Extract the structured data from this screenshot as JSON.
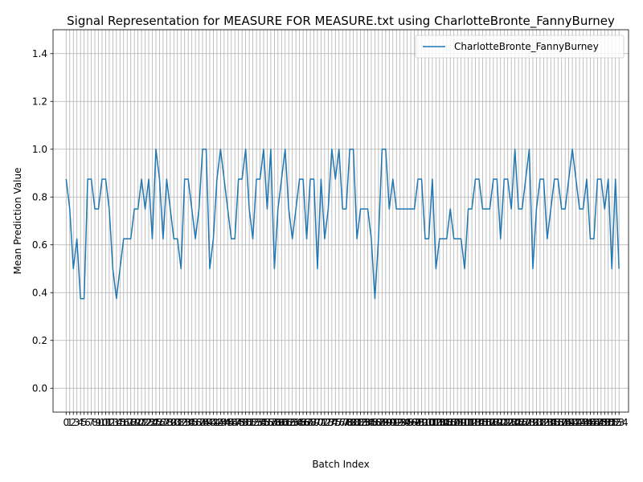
{
  "chart_data": {
    "type": "line",
    "title": "Signal Representation for MEASURE FOR MEASURE.txt using CharlotteBronte_FannyBurney",
    "xlabel": "Batch Index",
    "ylabel": "Mean Prediction Value",
    "xlim": [
      -3.65,
      156.65
    ],
    "ylim": [
      -0.1,
      1.5
    ],
    "y_ticks": [
      "0.0",
      "0.2",
      "0.4",
      "0.6",
      "0.8",
      "1.0",
      "1.2",
      "1.4"
    ],
    "grid": true,
    "legend_position": "upper-right",
    "series": [
      {
        "name": "CharlotteBronte_FannyBurney",
        "color": "#1f77b4",
        "values": [
          0.875,
          0.75,
          0.5,
          0.625,
          0.375,
          0.375,
          0.875,
          0.875,
          0.75,
          0.75,
          0.875,
          0.875,
          0.75,
          0.5,
          0.375,
          0.5,
          0.625,
          0.625,
          0.625,
          0.75,
          0.75,
          0.875,
          0.75,
          0.875,
          0.625,
          1.0,
          0.875,
          0.625,
          0.875,
          0.75,
          0.625,
          0.625,
          0.5,
          0.875,
          0.875,
          0.75,
          0.625,
          0.75,
          1.0,
          1.0,
          0.5,
          0.625,
          0.875,
          1.0,
          0.875,
          0.75,
          0.625,
          0.625,
          0.875,
          0.875,
          1.0,
          0.75,
          0.625,
          0.875,
          0.875,
          1.0,
          0.75,
          1.0,
          0.5,
          0.75,
          0.875,
          1.0,
          0.75,
          0.625,
          0.75,
          0.875,
          0.875,
          0.625,
          0.875,
          0.875,
          0.5,
          0.875,
          0.625,
          0.75,
          1.0,
          0.875,
          1.0,
          0.75,
          0.75,
          1.0,
          1.0,
          0.625,
          0.75,
          0.75,
          0.75,
          0.625,
          0.375,
          0.625,
          1.0,
          1.0,
          0.75,
          0.875,
          0.75,
          0.75,
          0.75,
          0.75,
          0.75,
          0.75,
          0.875,
          0.875,
          0.625,
          0.625,
          0.875,
          0.5,
          0.625,
          0.625,
          0.625,
          0.75,
          0.625,
          0.625,
          0.625,
          0.5,
          0.75,
          0.75,
          0.875,
          0.875,
          0.75,
          0.75,
          0.75,
          0.875,
          0.875,
          0.625,
          0.875,
          0.875,
          0.75,
          1.0,
          0.75,
          0.75,
          0.875,
          1.0,
          0.5,
          0.75,
          0.875,
          0.875,
          0.625,
          0.75,
          0.875,
          0.875,
          0.75,
          0.75,
          0.875,
          1.0,
          0.875,
          0.75,
          0.75,
          0.875,
          0.625,
          0.625,
          0.875,
          0.875,
          0.75,
          0.875,
          0.5,
          0.875,
          0.5
        ]
      }
    ]
  }
}
